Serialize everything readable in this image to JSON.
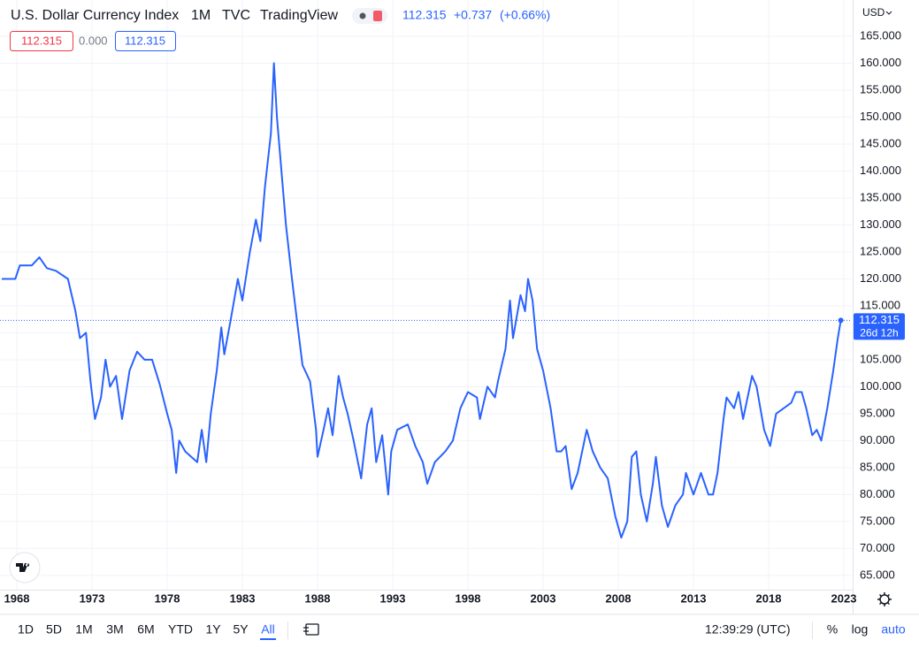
{
  "chart_data": {
    "type": "line",
    "title": "U.S. Dollar Currency Index",
    "interval": "1M",
    "exchange": "TVC",
    "source": "TradingView",
    "quote": {
      "last": "112.315",
      "change": "+0.737",
      "change_pct": "(+0.66%)"
    },
    "legend_values": [
      "112.315",
      "0.000",
      "112.315"
    ],
    "currency": "USD",
    "countdown": "26d 12h",
    "xlim": [
      1966.88,
      2023.53
    ],
    "xticks": [
      1968,
      1973,
      1978,
      1983,
      1988,
      1993,
      1998,
      2003,
      2008,
      2013,
      2018,
      2023
    ],
    "ylim": [
      62.2,
      166.8
    ],
    "yticks": [
      {
        "value": 65,
        "label": "65.000"
      },
      {
        "value": 70,
        "label": "70.000"
      },
      {
        "value": 75,
        "label": "75.000"
      },
      {
        "value": 80,
        "label": "80.000"
      },
      {
        "value": 85,
        "label": "85.000"
      },
      {
        "value": 90,
        "label": "90.000"
      },
      {
        "value": 95,
        "label": "95.000"
      },
      {
        "value": 100,
        "label": "100.000"
      },
      {
        "value": 105,
        "label": "105.000"
      },
      {
        "value": 110,
        "label": "110.000"
      },
      {
        "value": 115,
        "label": "115.000"
      },
      {
        "value": 120,
        "label": "120.000"
      },
      {
        "value": 125,
        "label": "125.000"
      },
      {
        "value": 130,
        "label": "130.000"
      },
      {
        "value": 135,
        "label": "135.000"
      },
      {
        "value": 140,
        "label": "140.000"
      },
      {
        "value": 145,
        "label": "145.000"
      },
      {
        "value": 150,
        "label": "150.000"
      },
      {
        "value": 155,
        "label": "155.000"
      },
      {
        "value": 160,
        "label": "160.000"
      },
      {
        "value": 165,
        "label": "165.000"
      }
    ],
    "grid": true,
    "series": [
      {
        "color": "#2962ff",
        "x": [
          1967.0,
          1967.9,
          1968.2,
          1969.0,
          1969.5,
          1970.0,
          1970.6,
          1971.4,
          1971.9,
          1972.2,
          1972.6,
          1972.9,
          1973.2,
          1973.6,
          1973.9,
          1974.2,
          1974.6,
          1975.0,
          1975.5,
          1976.0,
          1976.5,
          1977.0,
          1977.5,
          1978.0,
          1978.3,
          1978.6,
          1978.8,
          1979.2,
          1979.6,
          1980.0,
          1980.3,
          1980.6,
          1980.9,
          1981.3,
          1981.6,
          1981.8,
          1982.2,
          1982.7,
          1983.0,
          1983.5,
          1983.9,
          1984.2,
          1984.5,
          1984.9,
          1985.1,
          1985.3,
          1985.6,
          1985.9,
          1986.3,
          1986.6,
          1987.0,
          1987.5,
          1987.9,
          1988.0,
          1988.4,
          1988.7,
          1989.0,
          1989.4,
          1989.7,
          1990.0,
          1990.4,
          1990.9,
          1991.3,
          1991.6,
          1991.9,
          1992.3,
          1992.7,
          1992.9,
          1993.3,
          1994.0,
          1994.5,
          1995.0,
          1995.3,
          1995.8,
          1996.5,
          1997.0,
          1997.5,
          1998.0,
          1998.6,
          1998.8,
          1999.3,
          1999.8,
          2000.0,
          2000.5,
          2000.8,
          2001.0,
          2001.5,
          2001.8,
          2002.0,
          2002.3,
          2002.6,
          2003.0,
          2003.5,
          2003.9,
          2004.2,
          2004.5,
          2004.9,
          2005.3,
          2005.9,
          2006.3,
          2006.8,
          2007.3,
          2007.8,
          2008.2,
          2008.6,
          2008.9,
          2009.2,
          2009.5,
          2009.9,
          2010.3,
          2010.5,
          2010.9,
          2011.3,
          2011.8,
          2012.3,
          2012.5,
          2013.0,
          2013.5,
          2014.0,
          2014.3,
          2014.6,
          2015.0,
          2015.2,
          2015.7,
          2016.0,
          2016.3,
          2016.9,
          2017.2,
          2017.7,
          2018.1,
          2018.5,
          2019.0,
          2019.5,
          2019.8,
          2020.2,
          2020.5,
          2020.9,
          2021.2,
          2021.5,
          2021.9,
          2022.3,
          2022.6,
          2022.8
        ],
        "values": [
          120,
          120,
          122.5,
          122.5,
          124,
          122,
          121.5,
          120,
          114,
          109,
          110,
          101,
          94,
          98,
          105,
          100,
          102,
          94,
          103,
          106.5,
          105,
          105,
          100.5,
          95,
          92,
          84,
          90,
          88,
          87,
          86,
          92,
          86,
          95,
          103,
          111,
          106,
          112,
          120,
          116,
          125,
          131,
          127,
          137,
          147,
          160,
          150,
          140,
          130,
          120,
          113,
          104,
          101,
          92,
          87,
          92,
          96,
          91,
          102,
          98,
          95,
          90,
          83,
          93,
          96,
          86,
          91,
          80,
          88,
          92,
          93,
          89,
          86,
          82,
          86,
          88,
          90,
          96,
          99,
          98,
          94,
          100,
          98,
          101,
          107,
          116,
          109,
          117,
          114,
          120,
          116,
          107,
          103,
          96,
          88,
          88,
          89,
          81,
          84,
          92,
          88,
          85,
          83,
          76,
          72,
          75,
          87,
          88,
          80,
          75,
          82,
          87,
          78,
          74,
          78,
          80,
          84,
          80,
          84,
          80,
          80,
          84,
          94,
          98,
          96,
          99,
          94,
          102,
          100,
          92,
          89,
          95,
          96,
          97,
          99,
          99,
          96,
          91,
          92,
          90,
          96,
          103,
          109,
          112.315
        ]
      }
    ]
  },
  "toolbar": {
    "ranges": [
      "1D",
      "5D",
      "1M",
      "3M",
      "6M",
      "YTD",
      "1Y",
      "5Y",
      "All"
    ],
    "active_range_index": 8,
    "clock": "12:39:29 (UTC)",
    "scale_options": [
      "%",
      "log",
      "auto"
    ]
  }
}
